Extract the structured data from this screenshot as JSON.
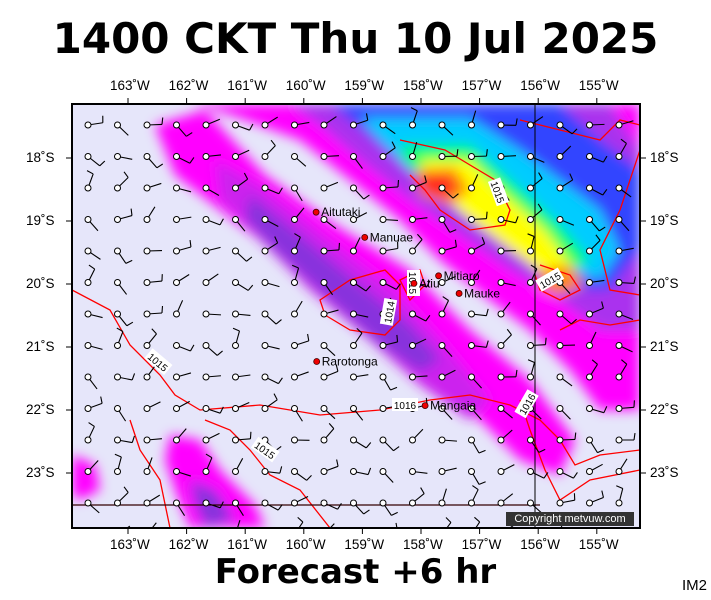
{
  "title": "1400 CKT Thu 10 Jul 2025",
  "footer": "Forecast +6 hr",
  "image_code": "IM2",
  "copyright": "Copyright metvuw.com",
  "lon_labels": [
    "163˚W",
    "162˚W",
    "161˚W",
    "160˚W",
    "159˚W",
    "158˚W",
    "157˚W",
    "156˚W",
    "155˚W"
  ],
  "lat_labels": [
    "18˚S",
    "19˚S",
    "20˚S",
    "21˚S",
    "22˚S",
    "23˚S"
  ],
  "islands": [
    {
      "name": "Aitutaki",
      "lon": -159.79,
      "lat": -18.86
    },
    {
      "name": "Manuae",
      "lon": -158.96,
      "lat": -19.26
    },
    {
      "name": "Atiu",
      "lon": -158.12,
      "lat": -19.99
    },
    {
      "name": "Mitiaro",
      "lon": -157.7,
      "lat": -19.87
    },
    {
      "name": "Mauke",
      "lon": -157.35,
      "lat": -20.15
    },
    {
      "name": "Rarotonga",
      "lon": -159.78,
      "lat": -21.23
    },
    {
      "name": "Mangaia",
      "lon": -157.93,
      "lat": -21.93
    }
  ],
  "isobar_labels": [
    "1015",
    "1015",
    "1014",
    "1015",
    "1015",
    "1016",
    "1016",
    "1015"
  ],
  "colors": {
    "ocean": "#e6e6fa",
    "isobar": "#ff0000",
    "frame": "#000000"
  }
}
